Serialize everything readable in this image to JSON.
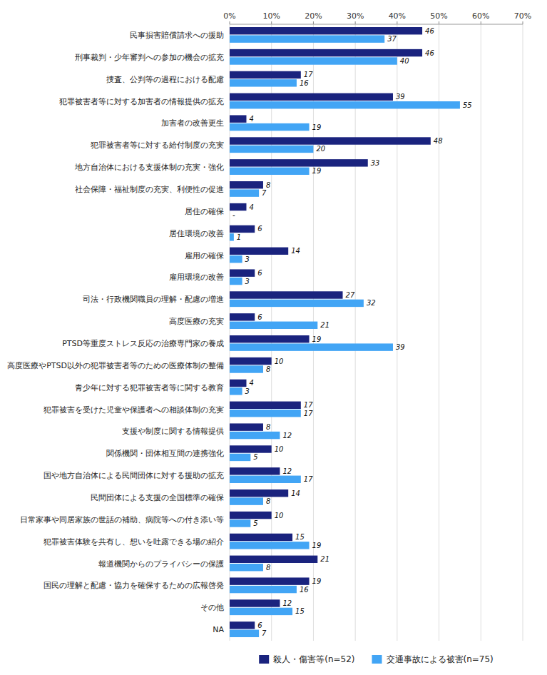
{
  "chart_data": {
    "type": "bar",
    "orientation": "horizontal",
    "categories": [
      "民事損害賠償請求への援助",
      "刑事裁判・少年審判への参加の機会の拡充",
      "捜査、公判等の過程における配慮",
      "犯罪被害者等に対する加害者の情報提供の拡充",
      "加害者の改善更生",
      "犯罪被害者等に対する給付制度の充実",
      "地方自治体における支援体制の充実・強化",
      "社会保障・福祉制度の充実、利便性の促進",
      "居住の確保",
      "居住環境の改善",
      "雇用の確保",
      "雇用環境の改善",
      "司法・行政機関職員の理解・配慮の増進",
      "高度医療の充実",
      "PTSD等重度ストレス反応の治療専門家の養成",
      "高度医療やPTSD以外の犯罪被害者等のための医療体制の整備",
      "青少年に対する犯罪被害者等に関する教育",
      "犯罪被害を受けた児童や保護者への相談体制の充実",
      "支援や制度に関する情報提供",
      "関係機関・団体相互間の連携強化",
      "国や地方自治体による民間団体に対する援助の拡充",
      "民間団体による支援の全国標準の確保",
      "日常家事や同居家族の世話の補助、病院等への付き添い等",
      "犯罪被害体験を共有し、想いを吐露できる場の紹介",
      "報道機関からのプライバシーの保護",
      "国民の理解と配慮・協力を確保するための広報啓発",
      "その他",
      "NA"
    ],
    "series": [
      {
        "name": "殺人・傷害等(n=52)",
        "color": "#1a237e",
        "values": [
          46,
          46,
          17,
          39,
          4,
          48,
          33,
          8,
          4,
          6,
          14,
          6,
          27,
          6,
          19,
          10,
          4,
          17,
          8,
          10,
          12,
          14,
          10,
          15,
          21,
          19,
          12,
          6
        ]
      },
      {
        "name": "交通事故による被害(n=75)",
        "color": "#42a5f5",
        "values": [
          37,
          40,
          16,
          55,
          19,
          20,
          19,
          7,
          0,
          1,
          3,
          3,
          32,
          21,
          39,
          8,
          3,
          17,
          12,
          5,
          17,
          8,
          5,
          19,
          8,
          16,
          15,
          7
        ],
        "value_labels": [
          "37",
          "40",
          "16",
          "55",
          "19",
          "20",
          "19",
          "7",
          "-",
          "1",
          "3",
          "3",
          "32",
          "21",
          "39",
          "8",
          "3",
          "17",
          "12",
          "5",
          "17",
          "8",
          "5",
          "19",
          "8",
          "16",
          "15",
          "7"
        ]
      }
    ],
    "xlim": [
      0,
      70
    ],
    "xticks": [
      {
        "value": 0,
        "label": "0%"
      },
      {
        "value": 10,
        "label": "10%"
      },
      {
        "value": 20,
        "label": "20%"
      },
      {
        "value": 30,
        "label": "30%"
      },
      {
        "value": 40,
        "label": "40%"
      },
      {
        "value": 50,
        "label": "50%"
      },
      {
        "value": 60,
        "label": "60%"
      },
      {
        "value": 70,
        "label": "70%"
      }
    ],
    "grid": true,
    "legend": "bottom",
    "data_labels": true
  }
}
